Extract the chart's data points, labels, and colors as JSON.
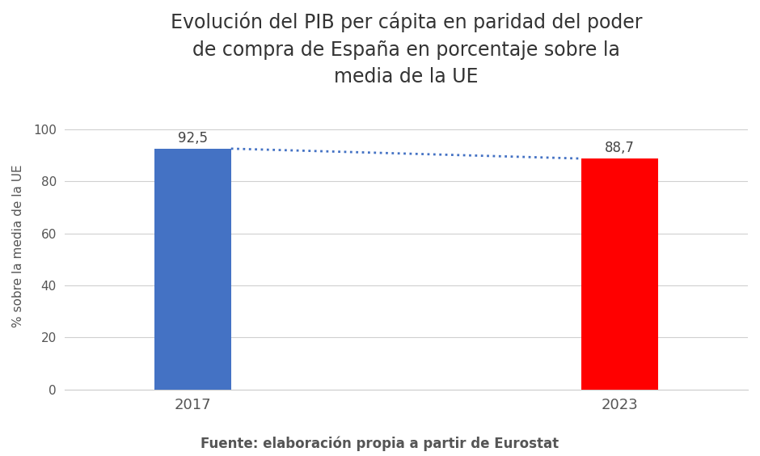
{
  "categories": [
    "2017",
    "2023"
  ],
  "values": [
    92.5,
    88.7
  ],
  "bar_colors": [
    "#4472C4",
    "#FF0000"
  ],
  "title": "Evolución del PIB per cápita en paridad del poder\nde compra de España en porcentaje sobre la\nmedia de la UE",
  "ylabel": "% sobre la media de la UE",
  "xlabel_source": "Fuente: elaboración propia a partir de Eurostat",
  "ylim": [
    0,
    110
  ],
  "yticks": [
    0,
    20,
    40,
    60,
    80,
    100
  ],
  "bar_width": 0.18,
  "dotted_line_color": "#4472C4",
  "label_fontsize": 12,
  "title_fontsize": 17,
  "ylabel_fontsize": 11,
  "source_fontsize": 12,
  "background_color": "#ffffff",
  "bar_positions": [
    1,
    2
  ],
  "value_labels": [
    "92,5",
    "88,7"
  ]
}
